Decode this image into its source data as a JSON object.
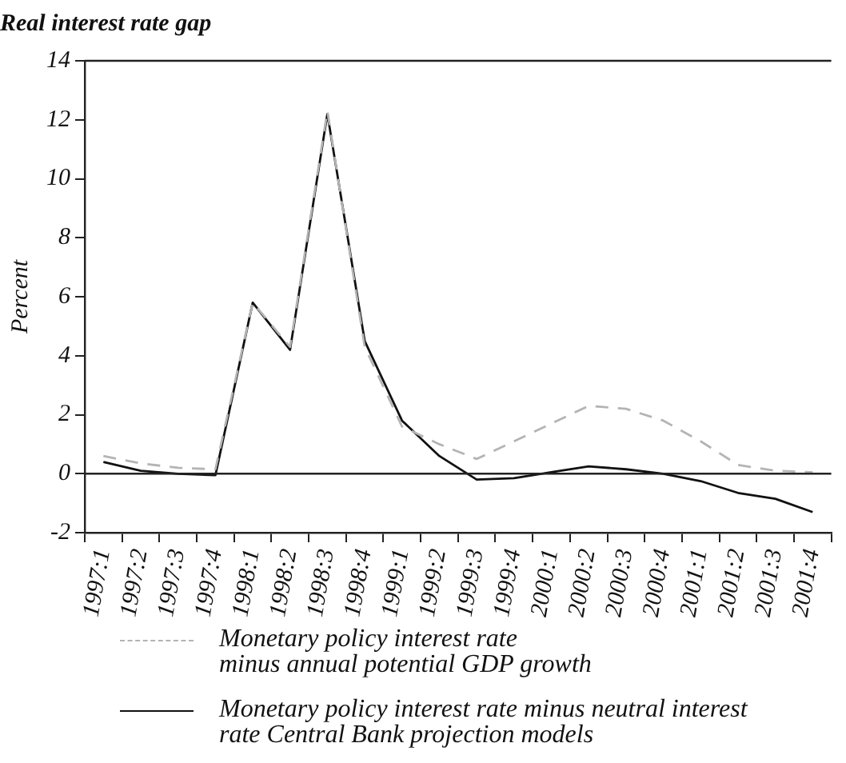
{
  "chart_data": {
    "type": "line",
    "title": "Real interest rate gap",
    "ylabel": "Percent",
    "categories": [
      "1997:1",
      "1997:2",
      "1997:3",
      "1997:4",
      "1998:1",
      "1998:2",
      "1998:3",
      "1998:4",
      "1999:1",
      "1999:2",
      "1999:3",
      "1999:4",
      "2000:1",
      "2000:2",
      "2000:3",
      "2000:4",
      "2001:1",
      "2001:2",
      "2001:3",
      "2001:4"
    ],
    "series": [
      {
        "name": "Monetary policy interest rate\nminus annual potential GDP growth",
        "color": "#b4b4b4",
        "line_style": "dashed",
        "values": [
          0.6,
          0.35,
          0.2,
          0.15,
          5.8,
          4.3,
          12.3,
          4.3,
          1.6,
          1.0,
          0.5,
          1.1,
          1.7,
          2.3,
          2.2,
          1.8,
          1.1,
          0.3,
          0.1,
          0.05
        ]
      },
      {
        "name": "Monetary policy interest rate minus neutral interest\nrate Central Bank projection models",
        "color": "#111111",
        "line_style": "solid",
        "values": [
          0.4,
          0.1,
          0.0,
          -0.05,
          5.8,
          4.2,
          12.2,
          4.5,
          1.8,
          0.6,
          -0.2,
          -0.15,
          0.05,
          0.25,
          0.15,
          0.0,
          -0.25,
          -0.65,
          -0.85,
          -1.3
        ]
      }
    ],
    "ylim": [
      -2,
      14
    ],
    "yticks": [
      -2,
      0,
      2,
      4,
      6,
      8,
      10,
      12,
      14
    ],
    "ref_lines": [
      {
        "axis": "y",
        "value": 0,
        "color": "#222222"
      }
    ],
    "grid": false,
    "legend": "bottom",
    "marker": "none"
  }
}
